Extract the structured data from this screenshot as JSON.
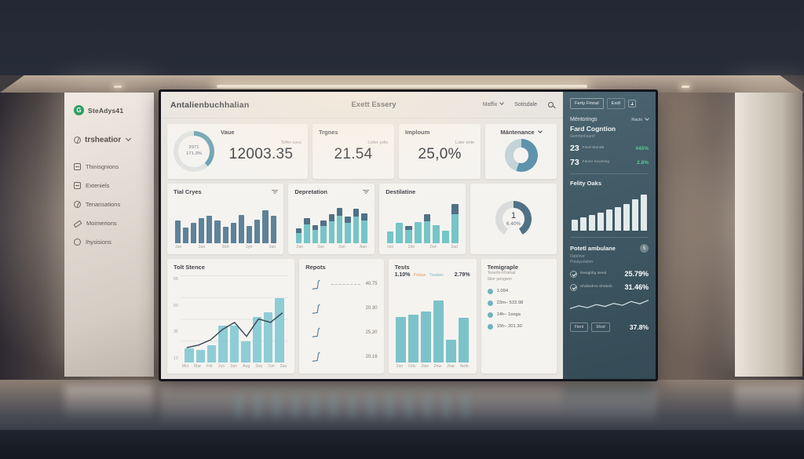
{
  "sidebar": {
    "logo_letter": "G",
    "logo_text": "SteAdys41",
    "account_label": "trsheatior",
    "items": [
      {
        "label": "Thinisgnions"
      },
      {
        "label": "Exteniels"
      },
      {
        "label": "Tenansations"
      },
      {
        "label": "Moimerions"
      },
      {
        "label": "Ihysisions"
      }
    ]
  },
  "header": {
    "title": "Antalienbuchhalian",
    "center_title": "Exett Essery",
    "dropdown_label": "Maffix",
    "link_label": "Sotisdale"
  },
  "kpis": {
    "vaue": {
      "label": "Vaue",
      "sublabel": "Teffer cses",
      "value": "12003.35",
      "ring_value": "2971",
      "ring_pct": "171.3%"
    },
    "trgnes": {
      "label": "Trgnes",
      "sublabel": "Lisfer yslis",
      "value": "21.54"
    },
    "imploum": {
      "label": "Imploum",
      "sublabel": "Loler onte",
      "value": "25,0%"
    },
    "mantenance": {
      "label": "Mántenance"
    }
  },
  "cards": {
    "tial_cryes": {
      "title": "Tial Cryes"
    },
    "depretation": {
      "title": "Depretation"
    },
    "destilatine": {
      "title": "Destilatine"
    },
    "tolt_stence": {
      "title": "Tolt Stence"
    },
    "repots": {
      "title": "Repots"
    },
    "tests": {
      "title": "Tests",
      "left_pct": "1.10%",
      "label1": "Preban",
      "label2": "Treaben",
      "right_pct": "2.79%"
    },
    "temigraple": {
      "title": "Temigraple",
      "subtitle1": "Teserts-Irframal",
      "subtitle2": "Siler pengwm"
    }
  },
  "right_panel": {
    "tab1": "Ferty Finnal",
    "tab2": "Exdl",
    "mentorings": {
      "title": "Méntorings",
      "dropdown": "Racki",
      "heading": "Fard Cogntion",
      "subheading": "Gemherbsarst",
      "stats": [
        {
          "value": "23",
          "label": "Fond Stunda",
          "delta": "445%"
        },
        {
          "value": "73",
          "label": "Factor Incoming",
          "delta": "2.8%"
        }
      ]
    },
    "felity_title": "Felity Oaks",
    "potetl": {
      "title": "Potetl ambulane",
      "badge": "5",
      "subtitle1": "Datelrwr",
      "subtitle2": "Polatyurlahm",
      "rows": [
        {
          "label": "Desigbhg Iseed",
          "value": "25.79%"
        },
        {
          "label": "Shdsedms Shrtseh",
          "value": "31.46%"
        }
      ],
      "footer": {
        "btn1": "Fient",
        "btn2": "Shsd",
        "value": "37.8%"
      }
    }
  },
  "colors": {
    "accent_teal": "#7cc3c9",
    "accent_slate": "#5d8299",
    "accent_dark": "#4f7187",
    "green": "#57c98f",
    "logo_green": "#2f9e63",
    "right_panel_bg": "#3f5761"
  },
  "chart_data": {
    "vaue_ring": {
      "type": "donut",
      "percent": 38,
      "color": "#6aa3b2",
      "track": "#e0e3e1"
    },
    "mantenance_donut": {
      "type": "donut",
      "percent": 55,
      "color": "#5d93ab",
      "track": "#c3d3d7"
    },
    "tial_cryes": {
      "type": "bar",
      "color": "#5d8299",
      "values": [
        50,
        35,
        45,
        55,
        60,
        50,
        36,
        44,
        62,
        38,
        52,
        72,
        60
      ],
      "tick_labels": [
        "Jan",
        "2an",
        "26A",
        "2yn",
        "3an"
      ]
    },
    "depretation": {
      "type": "stacked",
      "colors": [
        "#76c5c7",
        "#4f7187"
      ],
      "series": [
        {
          "name": "base",
          "values": [
            22,
            42,
            30,
            38,
            48,
            60,
            45,
            58,
            50
          ]
        },
        {
          "name": "top",
          "values": [
            10,
            14,
            10,
            12,
            15,
            18,
            14,
            18,
            15
          ]
        }
      ],
      "tick_labels": [
        "2an",
        "3an",
        "2an",
        "Aan"
      ]
    },
    "destilatine": {
      "type": "stacked",
      "colors": [
        "#76c5c7",
        "#4f7187"
      ],
      "series": [
        {
          "name": "base",
          "values": [
            26,
            44,
            30,
            46,
            48,
            40,
            27,
            64
          ]
        },
        {
          "name": "top",
          "values": [
            0,
            0,
            8,
            0,
            16,
            0,
            0,
            22
          ]
        }
      ],
      "tick_labels": [
        "Hct",
        "2do",
        "2a4",
        "2ad"
      ]
    },
    "gauge": {
      "type": "gauge",
      "percent": 50,
      "color": "#4f7185",
      "track": "#d9dcda",
      "value": "1",
      "pct": "6.40%"
    },
    "tolt_stence": {
      "type": "combo",
      "bar_color": "#8ecdd6",
      "line_color": "#3e4a54",
      "bars": [
        16,
        14,
        20,
        42,
        42,
        24,
        52,
        58,
        74
      ],
      "line": [
        17,
        20,
        26,
        38,
        46,
        30,
        50,
        46,
        57
      ],
      "y_ticks": [
        "55",
        "50",
        "35",
        "12"
      ],
      "tick_labels": [
        "Mct",
        "Mar",
        "Fdr",
        "Jun",
        "2an",
        "Aug",
        "2aq",
        "7un",
        "2au"
      ]
    },
    "repots": {
      "type": "rows",
      "glyph_color": "#5d8299",
      "rows": [
        "40.75",
        "20.30",
        "25.30",
        "20.16"
      ]
    },
    "tests": {
      "type": "bar",
      "color": "#7cc3c9",
      "values": [
        55,
        58,
        62,
        75,
        28,
        54
      ],
      "tick_labels": [
        "2an",
        "Odv",
        "2aw",
        "2nw",
        "Jhar",
        "Aeth"
      ]
    },
    "temigraple": {
      "type": "legend",
      "items": [
        "1.094",
        "23m– 532.98",
        "14h– 1sega",
        "15h– 201.30"
      ]
    },
    "felity_oaks": {
      "type": "bar",
      "color": "#e3eaec",
      "values": [
        26,
        33,
        39,
        45,
        51,
        58,
        66,
        76,
        88
      ]
    },
    "potetl_spark": {
      "type": "sparkline",
      "color": "#cdd9de",
      "points": [
        40,
        55,
        45,
        62,
        52,
        68,
        58,
        78,
        66,
        85
      ]
    }
  }
}
